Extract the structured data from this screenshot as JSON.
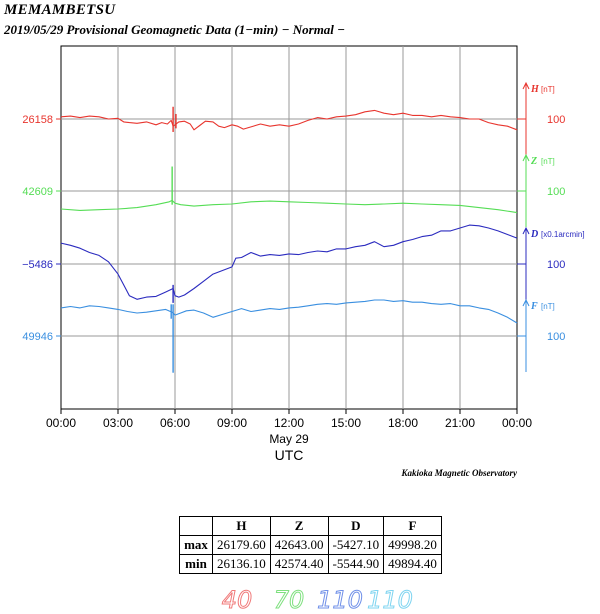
{
  "header": {
    "station": "MEMAMBETSU",
    "subtitle": "2019/05/29  Provisional Geomagnetic Data (1−min)  − Normal −"
  },
  "chart_data": {
    "type": "line",
    "title": "MEMAMBETSU",
    "subtitle": "2019/05/29 Provisional Geomagnetic Data (1-min) - Normal -",
    "x_tick_labels": [
      "00:00",
      "03:00",
      "06:00",
      "09:00",
      "12:00",
      "15:00",
      "18:00",
      "21:00",
      "00:00"
    ],
    "x_range_hours": [
      0,
      24
    ],
    "xlabel_date": "May 29",
    "xlabel": "UTC",
    "credit": "Kakioka Magnetic Observatory",
    "series": [
      {
        "name": "H",
        "unit": "[nT]",
        "color": "#e8352e",
        "left_label": "26158",
        "left_value": 26158,
        "scale_label": "100",
        "scale_per_division": 100,
        "x": [
          0,
          0.5,
          1,
          1.5,
          2,
          2.5,
          3,
          3.3,
          3.6,
          4,
          4.5,
          5,
          5.3,
          5.6,
          5.8,
          5.9,
          6,
          6.2,
          6.5,
          6.8,
          7,
          7.3,
          7.6,
          8,
          8.3,
          8.6,
          9,
          9.3,
          9.6,
          10,
          10.5,
          11,
          11.5,
          12,
          12.5,
          13,
          13.5,
          14,
          14.5,
          15,
          15.5,
          16,
          16.5,
          17,
          17.5,
          18,
          18.5,
          19,
          19.5,
          20,
          20.5,
          21,
          21.5,
          22,
          22.5,
          23,
          23.5,
          24
        ],
        "y": [
          26161,
          26162,
          26160,
          26162,
          26161,
          26158,
          26159,
          26154,
          26153,
          26152,
          26154,
          26150,
          26153,
          26151,
          26156,
          26148,
          26150,
          26154,
          26155,
          26151,
          26143,
          26149,
          26155,
          26154,
          26148,
          26146,
          26150,
          26148,
          26144,
          26147,
          26151,
          26148,
          26150,
          26148,
          26151,
          26156,
          26160,
          26158,
          26161,
          26162,
          26164,
          26168,
          26170,
          26166,
          26164,
          26166,
          26163,
          26163,
          26161,
          26163,
          26161,
          26160,
          26158,
          26158,
          26153,
          26150,
          26148,
          26143
        ],
        "spikes": [
          {
            "x": 5.9,
            "y": [
              26140,
              26175
            ]
          },
          {
            "x": 6.05,
            "y": [
              26145,
              26165
            ]
          }
        ]
      },
      {
        "name": "Z",
        "unit": "[nT]",
        "color": "#55dd55",
        "left_label": "42609",
        "left_value": 42609,
        "scale_label": "100",
        "scale_per_division": 100,
        "x": [
          0,
          1,
          2,
          3,
          4,
          5,
          5.7,
          5.85,
          6,
          6.3,
          7,
          8,
          9,
          10,
          11,
          12,
          13,
          14,
          15,
          16,
          17,
          18,
          19,
          20,
          21,
          22,
          23,
          24
        ],
        "y": [
          42584,
          42582,
          42583,
          42584,
          42586,
          42590,
          42594,
          42596,
          42592,
          42590,
          42588,
          42590,
          42591,
          42594,
          42595,
          42594,
          42593,
          42592,
          42591,
          42590,
          42591,
          42592,
          42591,
          42590,
          42589,
          42586,
          42583,
          42579
        ],
        "spikes": [
          {
            "x": 5.85,
            "y": [
              42590,
              42643
            ]
          }
        ]
      },
      {
        "name": "D",
        "unit": "[x0.1arcmin]",
        "color": "#2b2bbf",
        "left_label": "−5486",
        "left_value": -5486,
        "scale_label": "100",
        "scale_per_division": 100,
        "x": [
          0,
          0.5,
          1,
          1.5,
          2,
          2.5,
          3,
          3.3,
          3.6,
          4,
          4.5,
          5,
          5.5,
          5.9,
          6,
          6.2,
          6.5,
          7,
          7.5,
          8,
          8.5,
          9,
          9.2,
          9.5,
          10,
          10.5,
          11,
          11.5,
          12,
          12.5,
          13,
          13.5,
          14,
          14.5,
          15,
          15.5,
          16,
          16.5,
          17,
          17.5,
          18,
          18.5,
          19,
          19.5,
          20,
          20.5,
          21,
          21.5,
          22,
          22.5,
          23,
          23.5,
          24
        ],
        "y": [
          -5457,
          -5460,
          -5464,
          -5470,
          -5474,
          -5483,
          -5500,
          -5515,
          -5530,
          -5535,
          -5532,
          -5531,
          -5525,
          -5520,
          -5530,
          -5532,
          -5529,
          -5520,
          -5510,
          -5500,
          -5495,
          -5490,
          -5478,
          -5477,
          -5470,
          -5475,
          -5473,
          -5474,
          -5472,
          -5473,
          -5470,
          -5468,
          -5469,
          -5465,
          -5465,
          -5462,
          -5460,
          -5455,
          -5462,
          -5460,
          -5455,
          -5452,
          -5448,
          -5446,
          -5440,
          -5440,
          -5436,
          -5432,
          -5433,
          -5436,
          -5440,
          -5445,
          -5450
        ],
        "spikes": [
          {
            "x": 5.9,
            "y": [
              -5540,
              -5515
            ]
          }
        ]
      },
      {
        "name": "F",
        "unit": "[nT]",
        "color": "#3a8fe0",
        "left_label": "49946",
        "left_value": 49946,
        "scale_label": "100",
        "scale_per_division": 100,
        "x": [
          0,
          0.5,
          1,
          1.5,
          2,
          2.5,
          3,
          3.5,
          4,
          4.5,
          5,
          5.5,
          5.85,
          6,
          6.3,
          6.6,
          7,
          7.5,
          8,
          8.5,
          9,
          9.5,
          10,
          10.5,
          11,
          11.5,
          12,
          12.5,
          13,
          13.5,
          14,
          14.5,
          15,
          15.5,
          16,
          16.5,
          17,
          17.5,
          18,
          18.5,
          19,
          19.5,
          20,
          20.5,
          21,
          21.5,
          22,
          22.5,
          23,
          23.5,
          24
        ],
        "y": [
          49985,
          49987,
          49985,
          49988,
          49987,
          49985,
          49983,
          49980,
          49978,
          49979,
          49981,
          49983,
          49979,
          49975,
          49978,
          49981,
          49982,
          49978,
          49972,
          49976,
          49980,
          49984,
          49980,
          49982,
          49984,
          49983,
          49985,
          49986,
          49988,
          49990,
          49991,
          49990,
          49992,
          49993,
          49994,
          49996,
          49996,
          49994,
          49995,
          49993,
          49993,
          49991,
          49990,
          49991,
          49988,
          49988,
          49985,
          49983,
          49978,
          49972,
          49964
        ],
        "spikes": [
          {
            "x": 5.9,
            "y": [
              49895,
              49990
            ]
          },
          {
            "x": 5.8,
            "y": [
              49970,
              49990
            ]
          }
        ]
      }
    ]
  },
  "stats_table": {
    "headers": [
      "",
      "H",
      "Z",
      "D",
      "F"
    ],
    "rows": [
      {
        "label": "max",
        "values": [
          "26179.60",
          "42643.00",
          "-5427.10",
          "49998.20"
        ]
      },
      {
        "label": "min",
        "values": [
          "26136.10",
          "42574.40",
          "-5544.90",
          "49894.40"
        ]
      }
    ]
  },
  "scale_marks": [
    {
      "text": "40",
      "color": "#f07a7a"
    },
    {
      "text": "70",
      "color": "#7fe07f"
    },
    {
      "text": "110",
      "color": "#7090e8"
    },
    {
      "text": "110",
      "color": "#7fd4f0"
    }
  ]
}
